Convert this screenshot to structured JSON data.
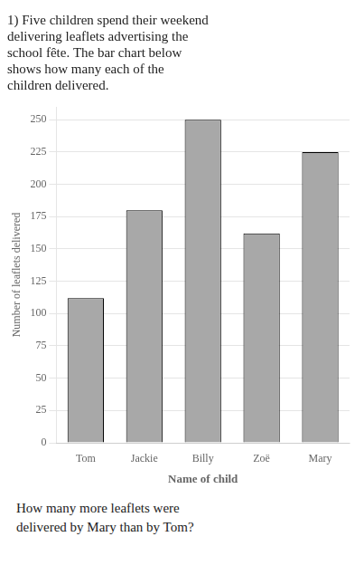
{
  "chart_data": {
    "type": "bar",
    "title": [
      "1) Five children spend their weekend",
      "delivering leaflets advertising the",
      "school fête. The bar chart below",
      "shows how many each of the",
      "children delivered."
    ],
    "annotations": [
      "How many more leaflets were",
      "delivered by Mary than by Tom?"
    ],
    "categories": [
      "Tom",
      "Jackie",
      "Billy",
      "Zoë",
      "Mary"
    ],
    "values": [
      112,
      180,
      250,
      162,
      225
    ],
    "color": "#a8a8a8",
    "x_label": "Name of child",
    "y_label": "Number of leaflets delivered",
    "ylim": [
      0,
      260
    ],
    "yticks": [
      0,
      25,
      50,
      75,
      100,
      125,
      150,
      175,
      200,
      225,
      250
    ],
    "grid": true
  }
}
